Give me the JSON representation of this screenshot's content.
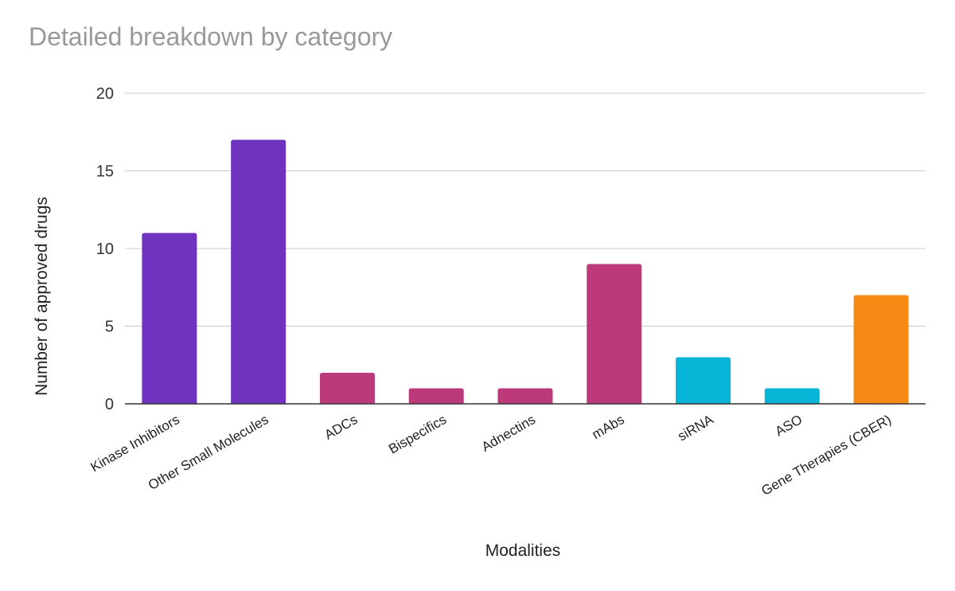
{
  "chart_data": {
    "type": "bar",
    "title": "Detailed breakdown by category",
    "xlabel": "Modalities",
    "ylabel": "Number of approved drugs",
    "categories": [
      "Kinase Inhibitors",
      "Other Small Molecules",
      "ADCs",
      "Bispecifics",
      "Adnectins",
      "mAbs",
      "siRNA",
      "ASO",
      "Gene Therapies (CBER)"
    ],
    "values": [
      11,
      17,
      2,
      1,
      1,
      9,
      3,
      1,
      7
    ],
    "bar_colors": [
      "#7033C0",
      "#7033C0",
      "#BD3A7A",
      "#BD3A7A",
      "#BD3A7A",
      "#BD3A7A",
      "#06B5D6",
      "#06B5D6",
      "#F58B15"
    ],
    "ylim": [
      0,
      20
    ],
    "yticks": [
      "0",
      "5",
      "10",
      "15",
      "20"
    ],
    "grid": true,
    "legend": "none",
    "gridline_color": "#CCCCCC",
    "baseline_color": "#333333"
  }
}
